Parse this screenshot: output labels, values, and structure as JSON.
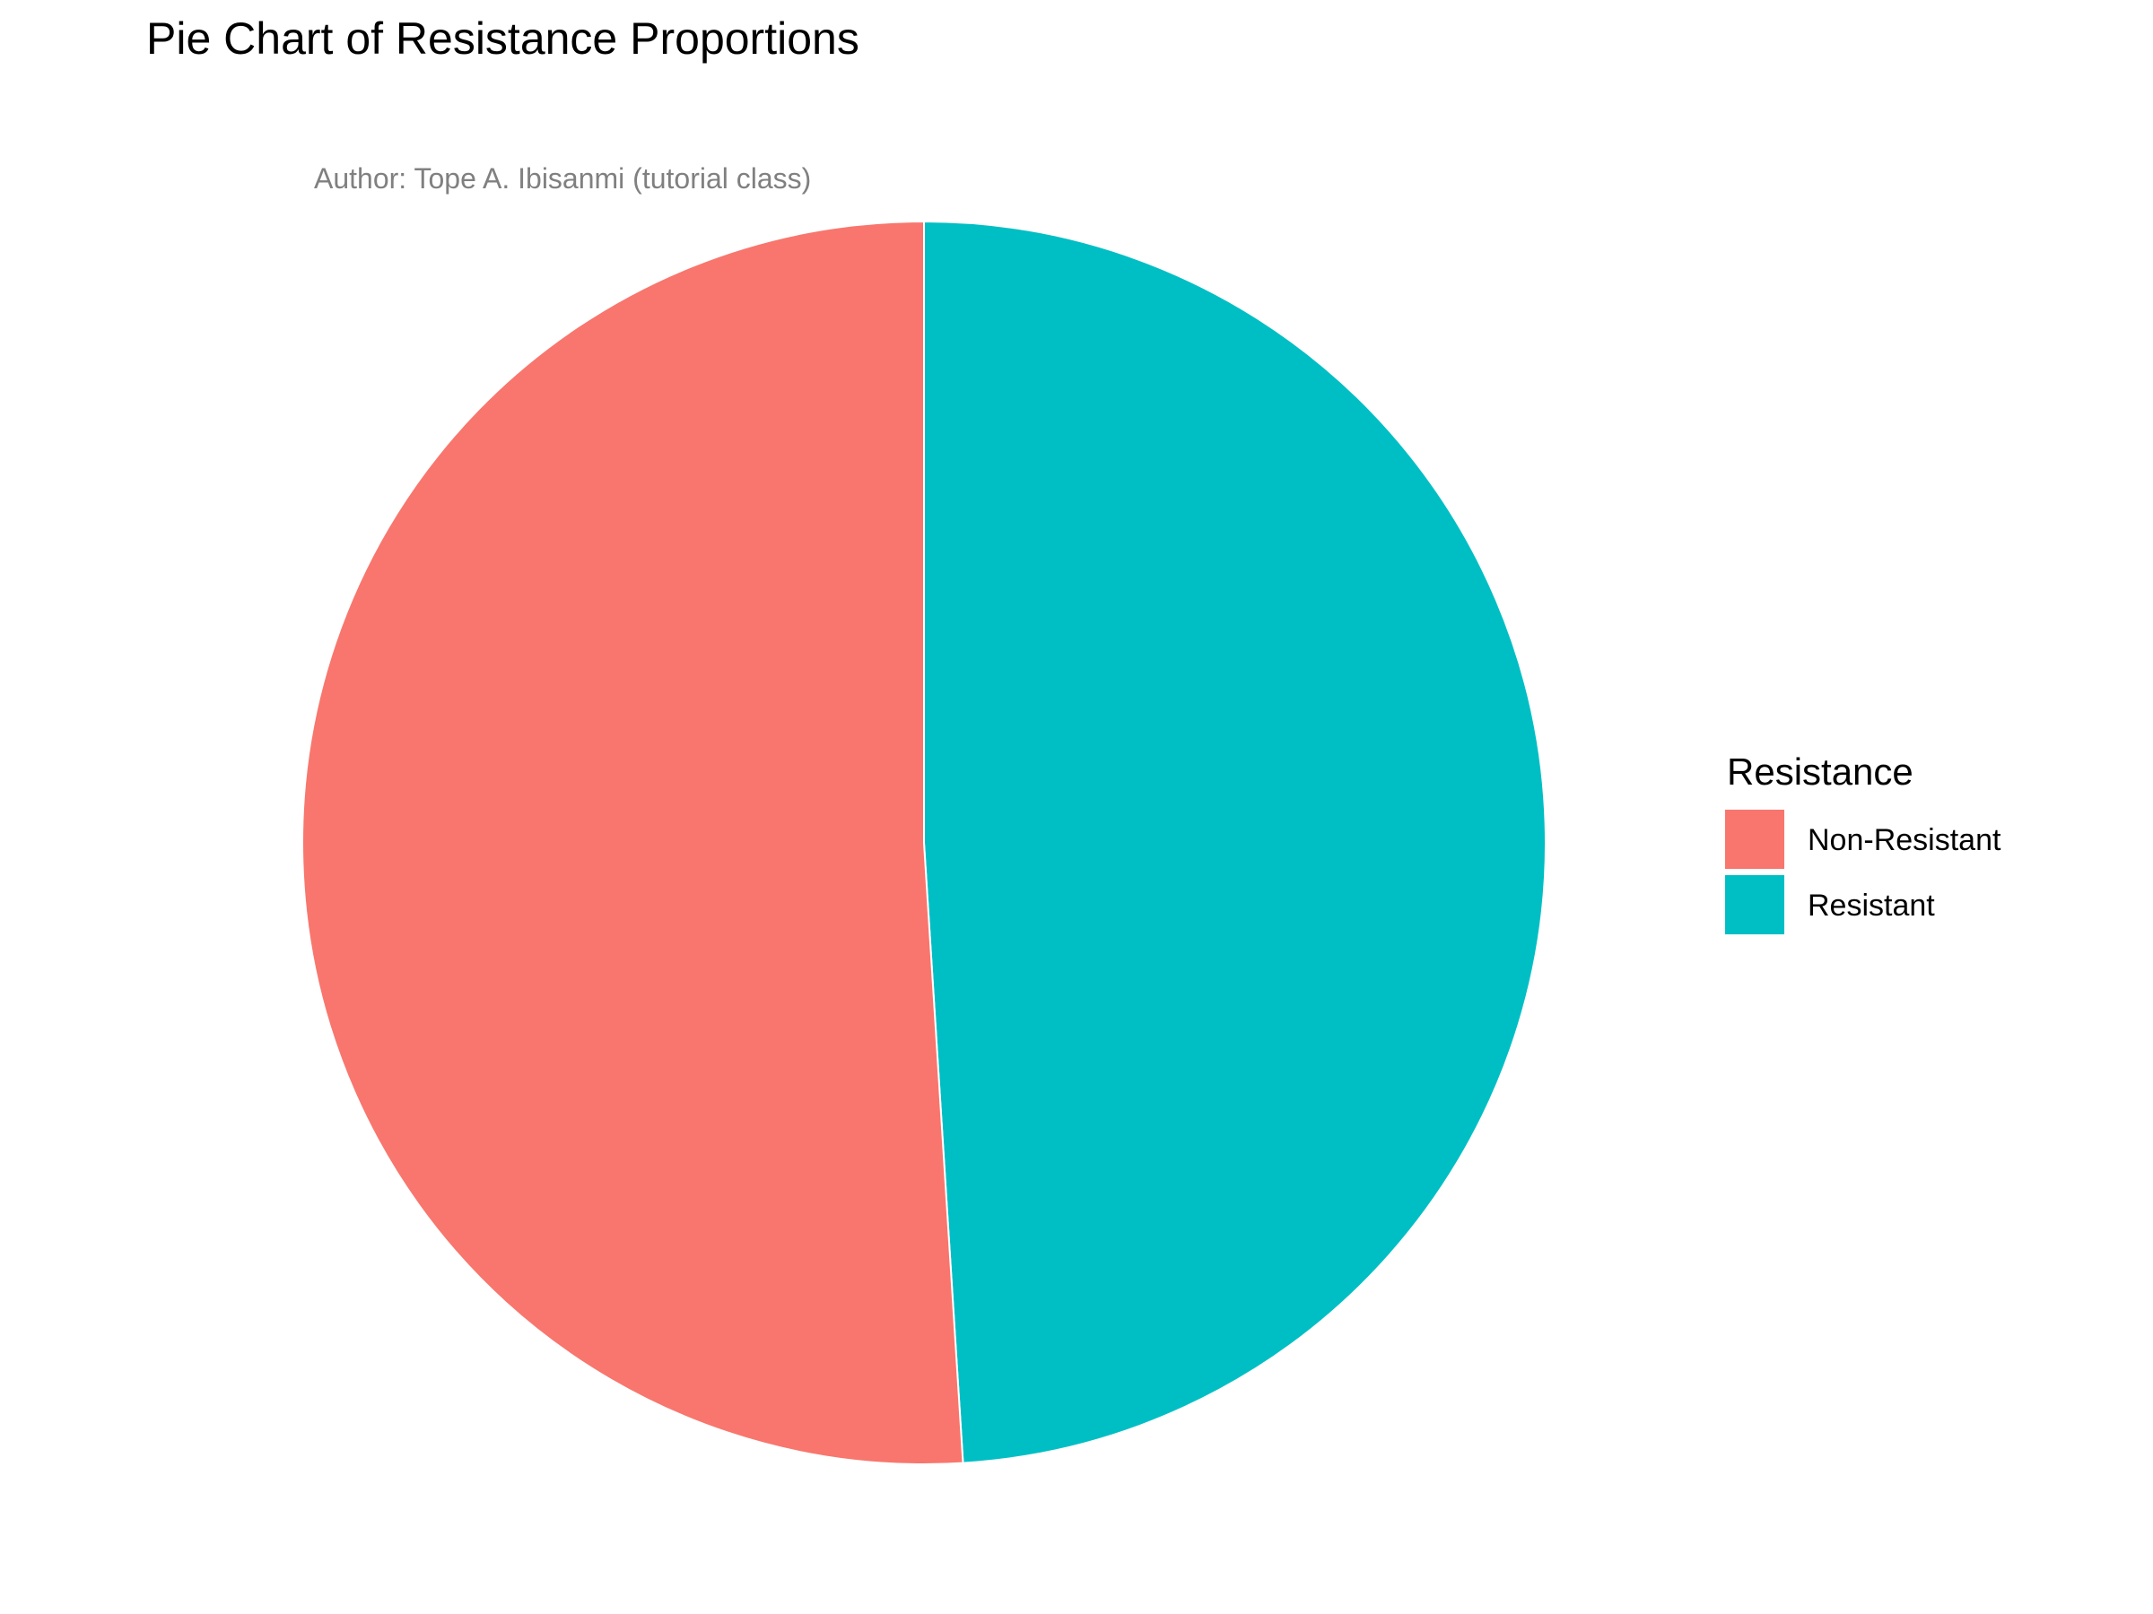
{
  "chart_data": {
    "type": "pie",
    "title": "Pie Chart of Resistance Proportions",
    "subtitle": "Author: Tope A. Ibisanmi (tutorial class)",
    "legend": {
      "title": "Resistance",
      "placement": "right"
    },
    "categories": [
      "Non-Resistant",
      "Resistant"
    ],
    "values": [
      0.51,
      0.49
    ],
    "colors": [
      "#F8766D",
      "#00BFC4"
    ],
    "start": "12 o'clock",
    "direction": "clockwise from Resistant"
  }
}
